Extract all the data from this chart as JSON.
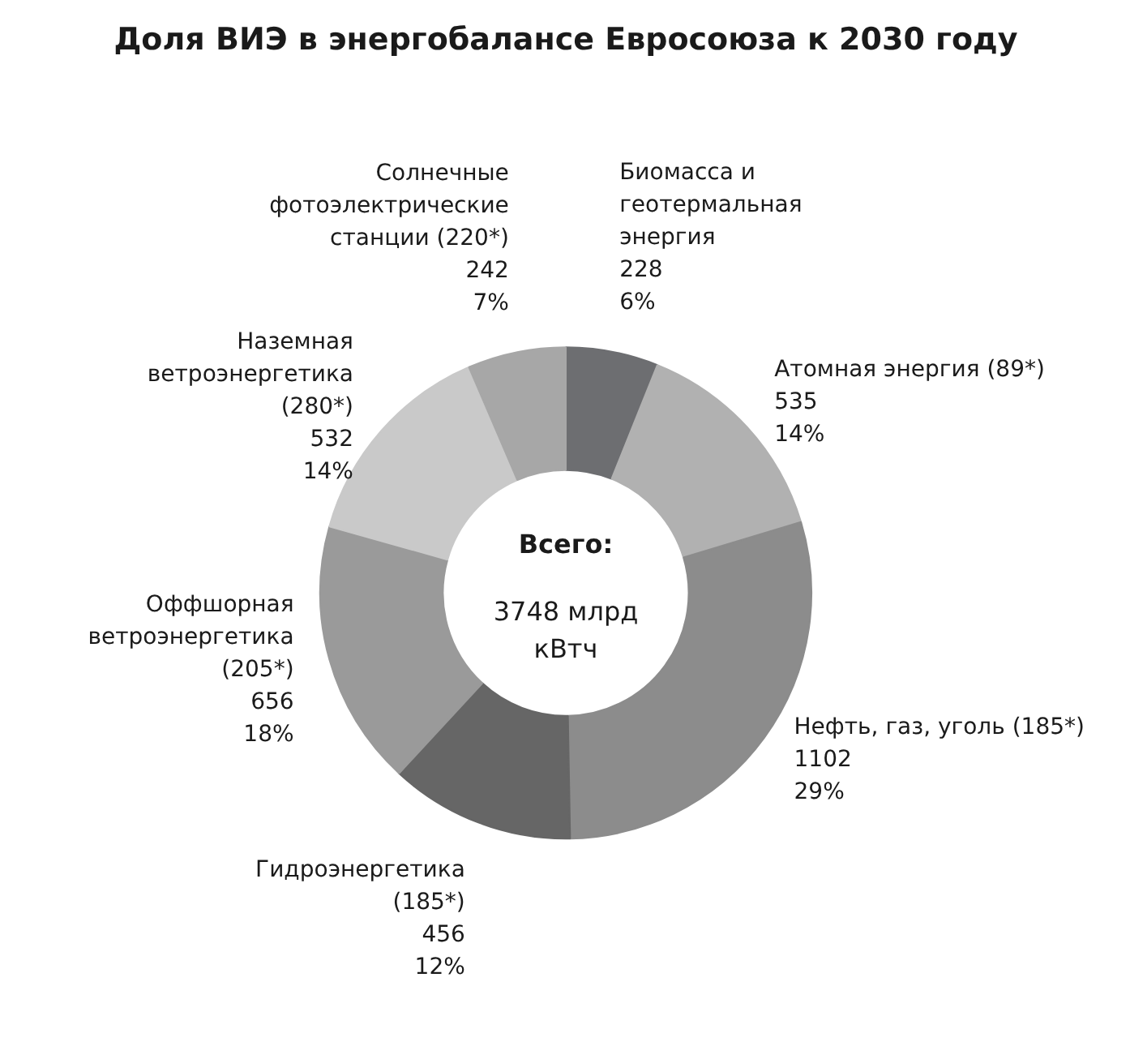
{
  "chart_data": {
    "type": "donut",
    "title": "Доля ВИЭ в энергобалансе Евросоюза к 2030 году",
    "categories": [
      "Биомасса и\nгеотермальная\nэнергия",
      "Атомная энергия (89*)",
      "Нефть, газ, уголь (185*)",
      "Гидроэнергетика\n(185*)",
      "Оффшорная\nветроэнергетика\n(205*)",
      "Наземная\nветроэнергетика\n(280*)",
      "Солнечные\nфотоэлектрические\nстанции (220*)"
    ],
    "values": [
      228,
      535,
      1102,
      456,
      656,
      532,
      242
    ],
    "value_labels": [
      "228\n6%",
      "535\n14%",
      "1102\n29%",
      "456\n12%",
      "656\n18%",
      "532\n14%",
      "242\n7%"
    ],
    "colors": [
      "#6d6e71",
      "#b1b1b1",
      "#8c8c8c",
      "#666666",
      "#9a9a9a",
      "#c9c9c9",
      "#a7a7a7"
    ],
    "annotations": [
      "Всего:",
      "3748 млрд\nкВтч"
    ],
    "legend": false
  }
}
